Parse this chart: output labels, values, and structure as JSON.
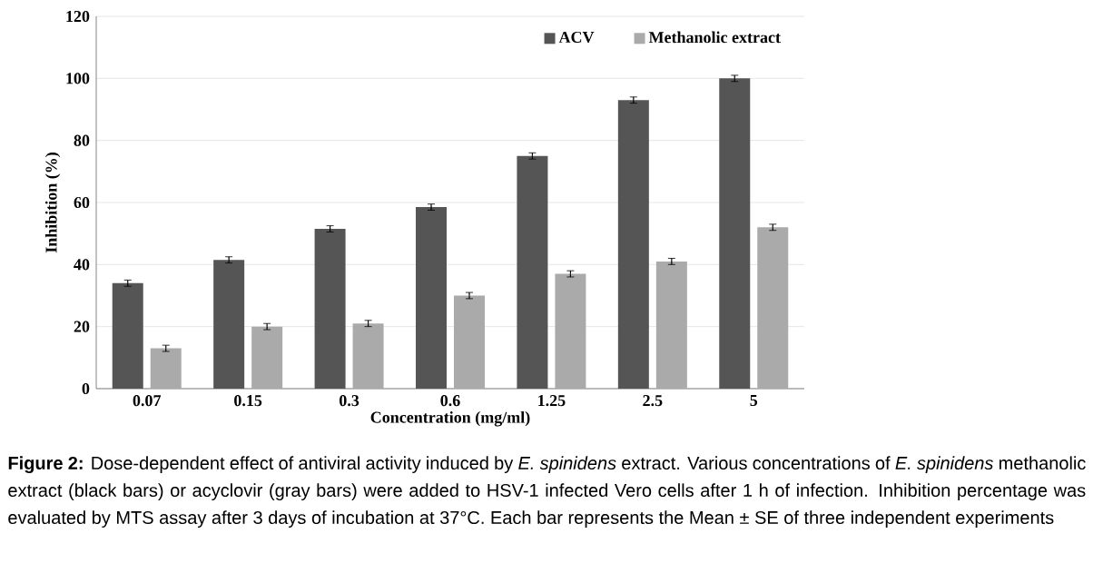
{
  "chart_data": {
    "type": "bar",
    "xlabel": "Concentration (mg/ml)",
    "ylabel": "Inhibition (%)",
    "categories": [
      "0.07",
      "0.15",
      "0.3",
      "0.6",
      "1.25",
      "2.5",
      "5"
    ],
    "series": [
      {
        "name": "ACV",
        "color": "#555555",
        "values": [
          34,
          41.5,
          51.5,
          58.5,
          75,
          93,
          100
        ],
        "errors": [
          1,
          1,
          1,
          1,
          1,
          1,
          1
        ]
      },
      {
        "name": "Methanolic extract",
        "color": "#aaaaaa",
        "values": [
          13,
          20,
          21,
          30,
          37,
          41,
          52
        ],
        "errors": [
          1,
          1,
          1,
          1,
          1,
          1,
          1
        ]
      }
    ],
    "ylim": [
      0,
      120
    ],
    "yticks": [
      0,
      20,
      40,
      60,
      80,
      100,
      120
    ],
    "grid": "y",
    "legend": "top right",
    "annotations": [
      "**Figure 2:** Dose-dependent effect of antiviral activity induced by *E. spinidens* extract. Various concentrations of *E. spinidens* methanolic extract (black bars) or acyclovir (gray bars) were added to HSV-1 infected Vero cells after 1 h of infection. Inhibition percentage was evaluated by MTS assay after 3 days of incubation at 37°C. Each bar represents the Mean ± SE of three independent experiments"
    ]
  }
}
